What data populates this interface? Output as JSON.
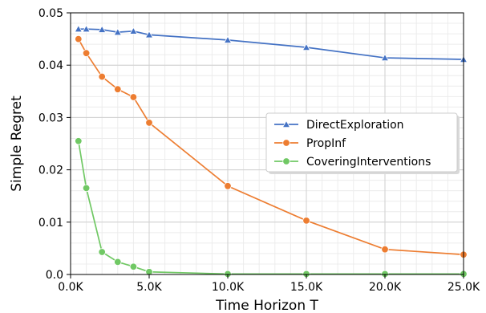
{
  "chart_data": {
    "type": "line",
    "title": "",
    "xlabel": "Time Horizon T",
    "ylabel": "Simple Regret",
    "xlim": [
      0,
      25000
    ],
    "ylim": [
      0,
      0.05
    ],
    "x_ticks": [
      0,
      5000,
      10000,
      15000,
      20000,
      25000
    ],
    "x_tick_labels": [
      "0.0K",
      "5.0K",
      "10.0K",
      "15.0K",
      "20.0K",
      "25.0K"
    ],
    "y_ticks": [
      0,
      0.01,
      0.02,
      0.03,
      0.04,
      0.05
    ],
    "y_tick_labels": [
      "0.0",
      "0.01",
      "0.02",
      "0.03",
      "0.04",
      "0.05"
    ],
    "grid": true,
    "legend_position": "right",
    "series": [
      {
        "name": "DirectExploration",
        "color": "#4472c4",
        "marker": "triangle",
        "x": [
          500,
          1000,
          2000,
          3000,
          4000,
          5000,
          10000,
          15000,
          20000,
          25000
        ],
        "y": [
          0.0469,
          0.0469,
          0.0468,
          0.0463,
          0.0465,
          0.0458,
          0.0448,
          0.0434,
          0.0414,
          0.0411
        ]
      },
      {
        "name": "PropInf",
        "color": "#ed7d31",
        "marker": "circle",
        "x": [
          500,
          1000,
          2000,
          3000,
          4000,
          5000,
          10000,
          15000,
          20000,
          25000
        ],
        "y": [
          0.045,
          0.0423,
          0.0378,
          0.0354,
          0.0339,
          0.029,
          0.0169,
          0.0103,
          0.0048,
          0.0038
        ]
      },
      {
        "name": "CoveringInterventions",
        "color": "#70c864",
        "marker": "circle",
        "x": [
          500,
          1000,
          2000,
          3000,
          4000,
          5000,
          10000,
          15000,
          20000,
          25000
        ],
        "y": [
          0.0255,
          0.0165,
          0.0043,
          0.0024,
          0.0015,
          0.0005,
          0.0001,
          0.0001,
          0.0001,
          0.0001
        ]
      }
    ]
  }
}
